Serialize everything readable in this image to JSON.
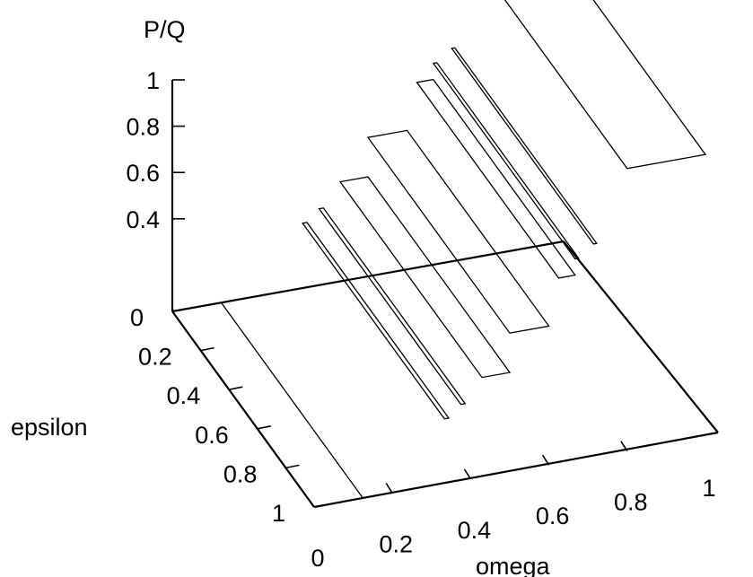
{
  "chart_data": {
    "type": "3d-bar",
    "title": "",
    "zlabel": "P/Q",
    "xlabel": "omega",
    "ylabel": "epsilon",
    "x_ticks": [
      "0",
      "0.2",
      "0.4",
      "0.6",
      "0.8",
      "1"
    ],
    "y_ticks": [
      "0",
      "0.2",
      "0.4",
      "0.6",
      "0.8",
      "1"
    ],
    "z_ticks": [
      "0.4",
      "0.6",
      "0.8",
      "1"
    ],
    "zlim": [
      0,
      1
    ],
    "xlim": [
      0,
      1
    ],
    "ylim": [
      0,
      1
    ],
    "series": [
      {
        "values": [
          {
            "omega": 0.125,
            "omega_end": 0.143,
            "P_Q": 0.0
          },
          {
            "omega": 0.333,
            "omega_end": 0.344,
            "P_Q": 0.28
          },
          {
            "omega": 0.375,
            "omega_end": 0.386,
            "P_Q": 0.33
          },
          {
            "omega": 0.429,
            "omega_end": 0.5,
            "P_Q": 0.43
          },
          {
            "omega": 0.5,
            "omega_end": 0.6,
            "P_Q": 0.6
          },
          {
            "omega": 0.625,
            "omega_end": 0.667,
            "P_Q": 0.8
          },
          {
            "omega": 0.667,
            "omega_end": 0.676,
            "P_Q": 0.87
          },
          {
            "omega": 0.714,
            "omega_end": 0.722,
            "P_Q": 0.92
          },
          {
            "omega": 0.8,
            "omega_end": 1.0,
            "P_Q": 1.22
          }
        ]
      }
    ],
    "grid": false,
    "legend": "none"
  }
}
